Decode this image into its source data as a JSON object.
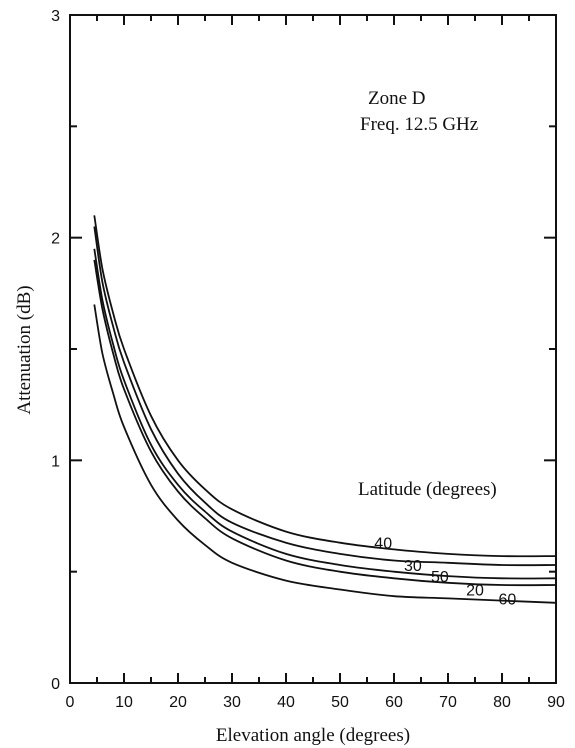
{
  "chart_data": {
    "type": "line",
    "title": "",
    "annotation_lines": [
      "Zone D",
      "Freq. 12.5 GHz"
    ],
    "legend_title": "Latitude (degrees)",
    "xlabel": "Elevation angle (degrees)",
    "ylabel": "Attenuation (dB)",
    "xlim": [
      0,
      90
    ],
    "ylim": [
      0,
      3
    ],
    "x_ticks": [
      "0",
      "10",
      "20",
      "30",
      "40",
      "50",
      "60",
      "70",
      "80",
      "90"
    ],
    "y_ticks": [
      "0",
      "1",
      "2",
      "3"
    ],
    "grid": false,
    "series": [
      {
        "name": "40",
        "x": [
          4.5,
          6,
          8,
          10,
          15,
          20,
          25,
          30,
          40,
          50,
          60,
          70,
          80,
          90
        ],
        "y": [
          2.1,
          1.86,
          1.66,
          1.5,
          1.2,
          1.0,
          0.87,
          0.78,
          0.68,
          0.63,
          0.6,
          0.58,
          0.57,
          0.57
        ]
      },
      {
        "name": "30",
        "x": [
          4.5,
          6,
          8,
          10,
          15,
          20,
          25,
          30,
          40,
          50,
          60,
          70,
          80,
          90
        ],
        "y": [
          2.05,
          1.8,
          1.6,
          1.44,
          1.14,
          0.94,
          0.81,
          0.72,
          0.63,
          0.58,
          0.55,
          0.54,
          0.53,
          0.53
        ]
      },
      {
        "name": "50",
        "x": [
          4.5,
          6,
          8,
          10,
          15,
          20,
          25,
          30,
          40,
          50,
          60,
          70,
          80,
          90
        ],
        "y": [
          1.95,
          1.72,
          1.52,
          1.36,
          1.07,
          0.89,
          0.77,
          0.68,
          0.58,
          0.53,
          0.5,
          0.48,
          0.47,
          0.47
        ]
      },
      {
        "name": "20",
        "x": [
          4.5,
          6,
          8,
          10,
          15,
          20,
          25,
          30,
          40,
          50,
          60,
          70,
          80,
          90
        ],
        "y": [
          1.9,
          1.68,
          1.48,
          1.32,
          1.04,
          0.86,
          0.74,
          0.65,
          0.55,
          0.5,
          0.47,
          0.45,
          0.44,
          0.44
        ]
      },
      {
        "name": "60",
        "x": [
          4.5,
          6,
          8,
          10,
          15,
          20,
          25,
          30,
          40,
          50,
          60,
          70,
          80,
          90
        ],
        "y": [
          1.7,
          1.48,
          1.3,
          1.15,
          0.89,
          0.73,
          0.62,
          0.54,
          0.46,
          0.42,
          0.39,
          0.38,
          0.37,
          0.36
        ]
      }
    ],
    "label_positions_data": {
      "40": [
        58,
        0.63
      ],
      "30": [
        63.5,
        0.53
      ],
      "50": [
        68.5,
        0.48
      ],
      "20": [
        75,
        0.42
      ],
      "60": [
        81,
        0.38
      ]
    }
  }
}
